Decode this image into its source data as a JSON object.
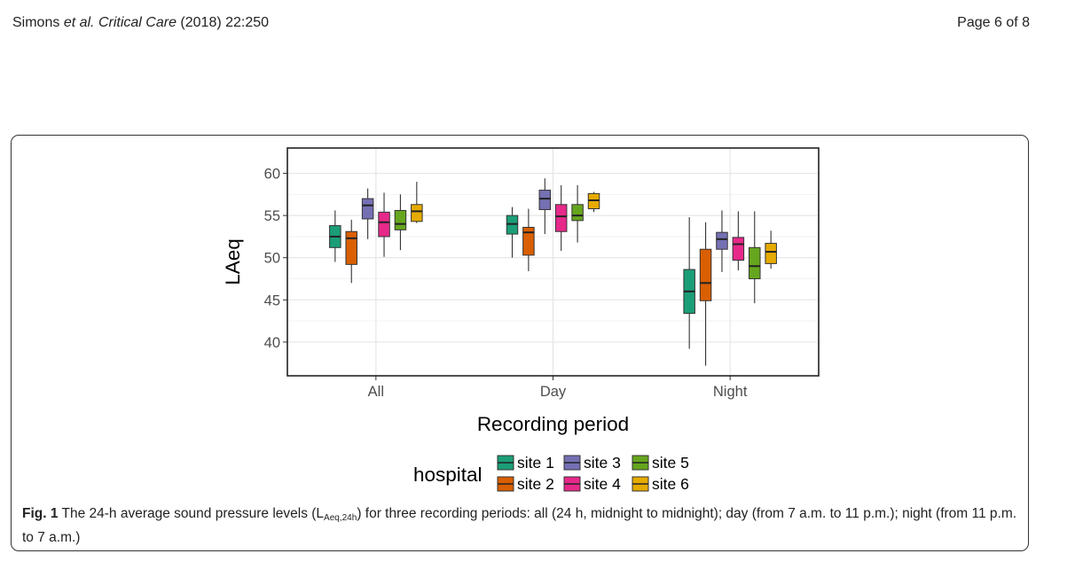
{
  "header": {
    "authors": "Simons",
    "etal": "et al.",
    "journal": "Critical Care",
    "citation": "(2018) 22:250",
    "page": "Page 6 of 8"
  },
  "caption": {
    "label": "Fig. 1",
    "text_before_sub": "The 24-h average sound pressure levels (L",
    "sub": "Aeq,24h",
    "text_after_sub": ") for three recording periods: all (24 h, midnight to midnight); day (from 7 a.m. to 11 p.m.); night (from 11 p.m. to 7 a.m.)"
  },
  "chart_data": {
    "type": "box",
    "xlabel": "Recording period",
    "ylabel": "LAeq",
    "categories": [
      "All",
      "Day",
      "Night"
    ],
    "ylim": [
      36,
      63
    ],
    "yticks": [
      40,
      45,
      50,
      55,
      60
    ],
    "grid": true,
    "legend": {
      "title": "hospital",
      "position": "bottom"
    },
    "series": [
      {
        "name": "site 1",
        "color": "#1b9e77",
        "boxes": [
          {
            "min": 49.5,
            "q1": 51.2,
            "median": 52.5,
            "q3": 53.8,
            "max": 55.6
          },
          {
            "min": 50.0,
            "q1": 52.8,
            "median": 54.0,
            "q3": 55.0,
            "max": 56.0
          },
          {
            "min": 39.2,
            "q1": 43.4,
            "median": 46.0,
            "q3": 48.6,
            "max": 54.8
          }
        ]
      },
      {
        "name": "site 2",
        "color": "#d95f02",
        "boxes": [
          {
            "min": 47.0,
            "q1": 49.2,
            "median": 52.3,
            "q3": 53.1,
            "max": 54.5
          },
          {
            "min": 48.4,
            "q1": 50.3,
            "median": 53.0,
            "q3": 53.6,
            "max": 55.8
          },
          {
            "min": 37.2,
            "q1": 44.9,
            "median": 47.0,
            "q3": 51.0,
            "max": 54.2
          }
        ]
      },
      {
        "name": "site 3",
        "color": "#7570b3",
        "boxes": [
          {
            "min": 52.2,
            "q1": 54.6,
            "median": 56.2,
            "q3": 57.0,
            "max": 58.2
          },
          {
            "min": 52.8,
            "q1": 55.7,
            "median": 57.0,
            "q3": 58.0,
            "max": 59.4
          },
          {
            "min": 48.3,
            "q1": 51.0,
            "median": 52.2,
            "q3": 53.0,
            "max": 55.6
          }
        ]
      },
      {
        "name": "site 4",
        "color": "#e7298a",
        "boxes": [
          {
            "min": 50.1,
            "q1": 52.5,
            "median": 54.2,
            "q3": 55.4,
            "max": 57.7
          },
          {
            "min": 50.8,
            "q1": 53.1,
            "median": 54.9,
            "q3": 56.3,
            "max": 58.6
          },
          {
            "min": 48.5,
            "q1": 49.7,
            "median": 51.6,
            "q3": 52.4,
            "max": 55.5
          }
        ]
      },
      {
        "name": "site 5",
        "color": "#66a61e",
        "boxes": [
          {
            "min": 50.9,
            "q1": 53.3,
            "median": 54.0,
            "q3": 55.6,
            "max": 57.5
          },
          {
            "min": 51.8,
            "q1": 54.4,
            "median": 55.0,
            "q3": 56.3,
            "max": 58.6
          },
          {
            "min": 44.6,
            "q1": 47.5,
            "median": 49.0,
            "q3": 51.2,
            "max": 55.5
          }
        ]
      },
      {
        "name": "site 6",
        "color": "#e6ab02",
        "boxes": [
          {
            "min": 54.1,
            "q1": 54.3,
            "median": 55.5,
            "q3": 56.3,
            "max": 59.0
          },
          {
            "min": 55.4,
            "q1": 55.8,
            "median": 56.8,
            "q3": 57.6,
            "max": 57.8
          },
          {
            "min": 48.7,
            "q1": 49.3,
            "median": 50.7,
            "q3": 51.7,
            "max": 53.2
          }
        ]
      }
    ]
  }
}
